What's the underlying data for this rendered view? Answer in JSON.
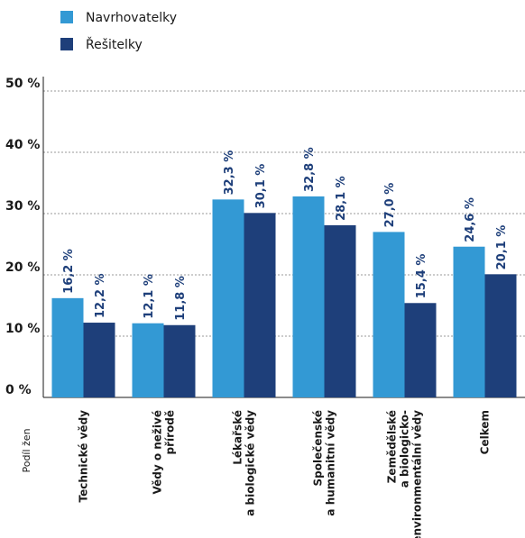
{
  "chart_data": {
    "type": "bar",
    "categories": [
      [
        "Technické vědy"
      ],
      [
        "Vědy o neživé",
        "přírodě"
      ],
      [
        "Lékařské",
        "a biologické vědy"
      ],
      [
        "Společenské",
        "a humanitní vědy"
      ],
      [
        "Zemědělské",
        "a biologicko-",
        "environmentální vědy"
      ],
      [
        "Celkem"
      ]
    ],
    "series": [
      {
        "name": "Navrhovatelky",
        "color": "#3399d4",
        "values": [
          16.2,
          12.1,
          32.3,
          32.8,
          27.0,
          24.6
        ],
        "labels": [
          "16,2 %",
          "12,1 %",
          "32,3 %",
          "32,8 %",
          "27,0 %",
          "24,6 %"
        ]
      },
      {
        "name": "Řešitelky",
        "color": "#1e3f7a",
        "values": [
          12.2,
          11.8,
          30.1,
          28.1,
          15.4,
          20.1
        ],
        "labels": [
          "12,2 %",
          "11,8 %",
          "30,1 %",
          "28,1 %",
          "15,4 %",
          "20,1 %"
        ]
      }
    ],
    "ylim": [
      0,
      50
    ],
    "yticks": [
      0,
      10,
      20,
      30,
      40,
      50
    ],
    "ytick_labels": [
      "0 %",
      "10 %",
      "20 %",
      "30 %",
      "40 %",
      "50 %"
    ],
    "ylabel": "Podíl žen",
    "xlabel": "",
    "title": "",
    "grid": true,
    "legend_position": "top-left"
  }
}
